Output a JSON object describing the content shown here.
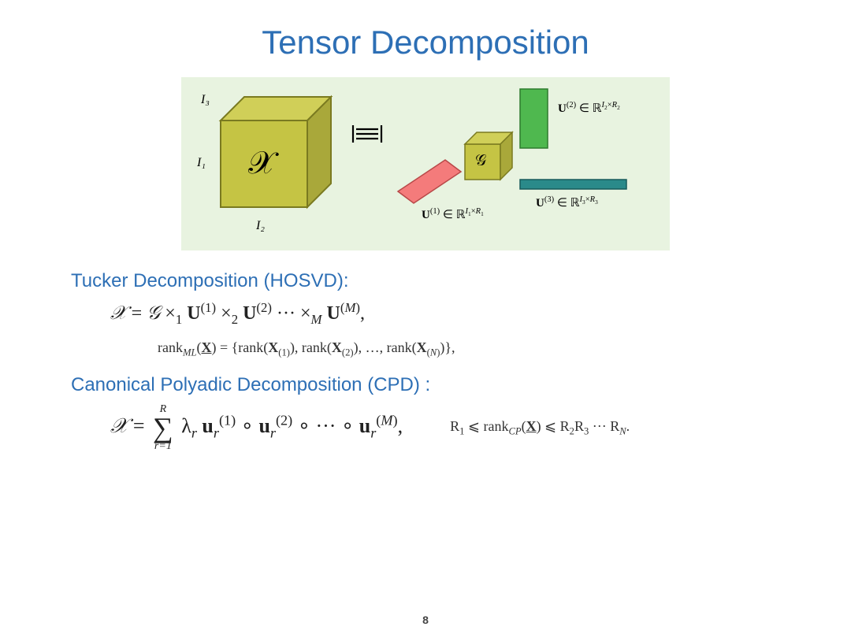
{
  "title": "Tensor Decomposition",
  "page_number": "8",
  "diagram": {
    "background": "#e8f3e0",
    "tensor_x": {
      "label_script": "𝒳",
      "dim_labels": [
        "I₁",
        "I₂",
        "I₃"
      ],
      "face_colors": {
        "front": "#c5c444",
        "top": "#d0cf58",
        "side": "#a9a83a"
      }
    },
    "equals_symbol": "≅",
    "core_g": {
      "label_script": "𝒢",
      "face_colors": {
        "front": "#c5c444",
        "top": "#d0cf58",
        "side": "#a9a83a"
      }
    },
    "factors": {
      "U1": {
        "color": "#f47b7b",
        "label_html": "U<sup>(1)</sup> ∈ ℝ<sup>I₁×R₁</sup>"
      },
      "U2": {
        "color": "#4fb84f",
        "label_html": "U<sup>(2)</sup> ∈ ℝ<sup>I₂×R₂</sup>"
      },
      "U3": {
        "color": "#2a8a8a",
        "label_html": "U<sup>(3)</sup> ∈ ℝ<sup>I₃×R₃</sup>"
      }
    }
  },
  "tucker": {
    "heading": "Tucker Decomposition (HOSVD):",
    "equation_html": "<span class='calx'>𝒳</span> = <span class='calx'>𝒢</span> ×<sub>1</sub> <b>U</b><sup>(1)</sup> ×<sub>2</sub> <b>U</b><sup>(2)</sup> ··· ×<sub><i>M</i></sub> <b>U</b><sup>(<i>M</i>)</sup>,",
    "rank_html": "rank<sub><i>ML</i></sub>(<u><b>X</b></u>) = {rank(<b>X</b><sub>(1)</sub>), rank(<b>X</b><sub>(2)</sub>), …, rank(<b>X</b><sub>(<i>N</i>)</sub>)},"
  },
  "cpd": {
    "heading": "Canonical Polyadic Decomposition (CPD) :",
    "equation_html": "<span class='calx'>𝒳</span> = <span class='sigma'><span class='top'>R</span><span class='sym'>∑</span><span class='bot'>r=1</span></span> λ<sub><i>r</i></sub> <b>u</b><sub><i>r</i></sub><sup>(1)</sup> ∘ <b>u</b><sub><i>r</i></sub><sup>(2)</sup> ∘ ··· ∘ <b>u</b><sub><i>r</i></sub><sup>(<i>M</i>)</sup>,",
    "side_html": "R<sub>1</sub> ⩽ rank<sub><i>CP</i></sub>(<u><b>X</b></u>) ⩽ R<sub>2</sub>R<sub>3</sub> ··· R<sub><i>N</i></sub>."
  }
}
